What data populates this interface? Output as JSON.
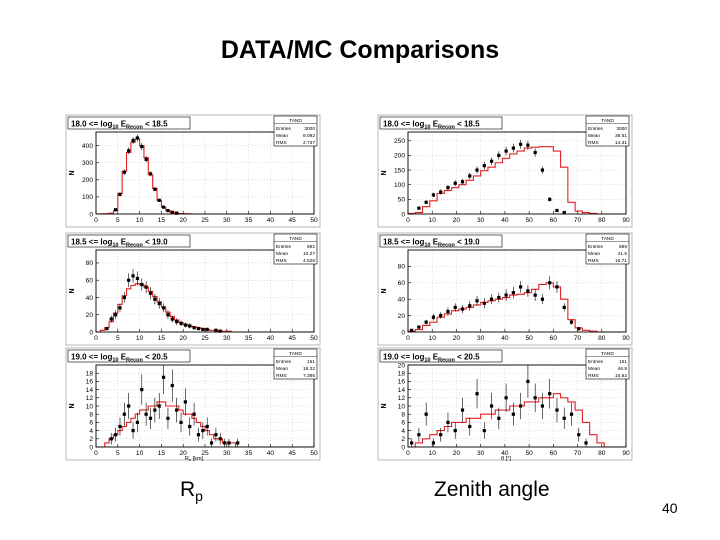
{
  "slide": {
    "title": "DATA/MC Comparisons",
    "caption_left": "Rp",
    "caption_left_main": "R",
    "caption_left_sub": "p",
    "caption_right": "Zenith angle",
    "page_number": "40"
  },
  "colors": {
    "mc_line": "#e02020",
    "data_marker": "#000000",
    "frame": "#000000",
    "grid": "#b0b0b0"
  },
  "chart_data": [
    {
      "type": "histogram",
      "title": "18.0 <= log10 ERecon < 18.5",
      "title_parts": [
        "18.0 <= log",
        "10",
        " E",
        "Recon",
        " < 18.5"
      ],
      "xlabel": "",
      "ylabel": "N",
      "xlim": [
        0,
        50
      ],
      "ylim": [
        0,
        480
      ],
      "xticks": [
        0,
        5,
        10,
        15,
        20,
        25,
        30,
        35,
        40,
        45,
        50
      ],
      "yticks": [
        0,
        100,
        200,
        300,
        400
      ],
      "stats": {
        "name": "TAND",
        "rows": [
          [
            "Entries",
            "3000"
          ],
          [
            "Mean",
            "8.092"
          ],
          [
            "RMS",
            "2.737"
          ]
        ]
      },
      "bin_width": 1,
      "mc": [
        0,
        1,
        2,
        5,
        20,
        120,
        250,
        360,
        420,
        440,
        400,
        330,
        230,
        150,
        80,
        40,
        20,
        10,
        5,
        3,
        2,
        1,
        0,
        0,
        0,
        0,
        0,
        0,
        0,
        0,
        0,
        0,
        0,
        0,
        0,
        0,
        0,
        0,
        0,
        0,
        0,
        0,
        0,
        0,
        0,
        0,
        0,
        0,
        0,
        0
      ],
      "data": [
        [
          4.5,
          25,
          0
        ],
        [
          5.5,
          115,
          12
        ],
        [
          6.5,
          245,
          16
        ],
        [
          7.5,
          370,
          20
        ],
        [
          8.5,
          430,
          21
        ],
        [
          9.5,
          445,
          21
        ],
        [
          10.5,
          395,
          20
        ],
        [
          11.5,
          320,
          18
        ],
        [
          12.5,
          235,
          15
        ],
        [
          13.5,
          145,
          12
        ],
        [
          14.5,
          80,
          9
        ],
        [
          15.5,
          40,
          6
        ],
        [
          16.5,
          20,
          4
        ],
        [
          17.5,
          10,
          3
        ],
        [
          18.5,
          5,
          2
        ]
      ],
      "grid": true
    },
    {
      "type": "histogram",
      "title": "18.0 <= log10 ERecon < 18.5",
      "title_parts": [
        "18.0 <= log",
        "10",
        " E",
        "Recon",
        " < 18.5"
      ],
      "xlabel": "",
      "ylabel": "N",
      "xlim": [
        0,
        90
      ],
      "ylim": [
        0,
        280
      ],
      "xticks": [
        0,
        10,
        20,
        30,
        40,
        50,
        60,
        70,
        80,
        90
      ],
      "yticks": [
        0,
        50,
        100,
        150,
        200,
        250
      ],
      "stats": {
        "name": "TAND",
        "rows": [
          [
            "Entries",
            "3000"
          ],
          [
            "Mean",
            "39.51"
          ],
          [
            "RMS",
            "14.31"
          ]
        ]
      },
      "bin_width": 3,
      "mc": [
        2,
        5,
        25,
        45,
        70,
        80,
        90,
        100,
        115,
        130,
        148,
        160,
        175,
        190,
        205,
        215,
        225,
        228,
        230,
        230,
        215,
        160,
        40,
        10,
        5,
        2,
        0,
        0,
        0,
        0
      ],
      "data": [
        [
          4.5,
          20,
          4
        ],
        [
          7.5,
          40,
          6
        ],
        [
          10.5,
          65,
          8
        ],
        [
          13.5,
          75,
          9
        ],
        [
          16.5,
          90,
          9
        ],
        [
          19.5,
          105,
          10
        ],
        [
          22.5,
          110,
          10
        ],
        [
          25.5,
          130,
          11
        ],
        [
          28.5,
          150,
          12
        ],
        [
          31.5,
          165,
          13
        ],
        [
          34.5,
          180,
          13
        ],
        [
          37.5,
          200,
          14
        ],
        [
          40.5,
          215,
          15
        ],
        [
          43.5,
          225,
          15
        ],
        [
          46.5,
          238,
          15
        ],
        [
          49.5,
          235,
          15
        ],
        [
          52.5,
          210,
          14
        ],
        [
          55.5,
          150,
          12
        ],
        [
          58.5,
          50,
          7
        ],
        [
          61.5,
          12,
          4
        ],
        [
          64.5,
          5,
          2
        ]
      ],
      "grid": true
    },
    {
      "type": "histogram",
      "title": "18.5 <= log10 ERecon < 19.0",
      "title_parts": [
        "18.5 <= log",
        "10",
        " E",
        "Recon",
        " < 19.0"
      ],
      "xlabel": "",
      "ylabel": "N",
      "xlim": [
        0,
        50
      ],
      "ylim": [
        0,
        95
      ],
      "xticks": [
        0,
        5,
        10,
        15,
        20,
        25,
        30,
        35,
        40,
        45,
        50
      ],
      "yticks": [
        0,
        20,
        40,
        60,
        80
      ],
      "stats": {
        "name": "TAND",
        "rows": [
          [
            "Entries",
            "892"
          ],
          [
            "Mean",
            "10.27"
          ],
          [
            "RMS",
            "4.528"
          ]
        ]
      },
      "bin_width": 1,
      "mc": [
        0,
        2,
        5,
        12,
        22,
        32,
        42,
        50,
        54,
        56,
        55,
        52,
        47,
        41,
        35,
        29,
        23,
        18,
        14,
        11,
        9,
        7,
        6,
        5,
        4,
        3,
        2,
        2,
        1,
        1,
        1,
        0,
        0,
        0,
        0,
        0,
        0,
        0,
        0,
        0,
        0,
        0,
        0,
        0,
        0,
        0,
        0,
        0,
        0,
        0
      ],
      "data": [
        [
          2.5,
          4,
          2
        ],
        [
          3.5,
          15,
          4
        ],
        [
          4.5,
          20,
          5
        ],
        [
          5.5,
          28,
          5
        ],
        [
          6.5,
          40,
          6
        ],
        [
          7.5,
          60,
          8
        ],
        [
          8.5,
          65,
          8
        ],
        [
          9.5,
          62,
          8
        ],
        [
          10.5,
          55,
          7
        ],
        [
          11.5,
          52,
          7
        ],
        [
          12.5,
          45,
          7
        ],
        [
          13.5,
          38,
          6
        ],
        [
          14.5,
          33,
          6
        ],
        [
          15.5,
          28,
          5
        ],
        [
          16.5,
          20,
          5
        ],
        [
          17.5,
          15,
          4
        ],
        [
          18.5,
          12,
          4
        ],
        [
          19.5,
          10,
          3
        ],
        [
          20.5,
          8,
          3
        ],
        [
          21.5,
          7,
          3
        ],
        [
          22.5,
          5,
          2
        ],
        [
          23.5,
          4,
          2
        ],
        [
          24.5,
          3,
          2
        ],
        [
          25.5,
          3,
          2
        ],
        [
          27.5,
          2,
          1
        ],
        [
          28.5,
          1,
          1
        ]
      ],
      "grid": true
    },
    {
      "type": "histogram",
      "title": "18.5 <= log10 ERecon < 19.0",
      "title_parts": [
        "18.5 <= log",
        "10",
        " E",
        "Recon",
        " < 19.0"
      ],
      "xlabel": "",
      "ylabel": "N",
      "xlim": [
        0,
        90
      ],
      "ylim": [
        0,
        100
      ],
      "xticks": [
        0,
        10,
        20,
        30,
        40,
        50,
        60,
        70,
        80,
        90
      ],
      "yticks": [
        0,
        20,
        40,
        60,
        80
      ],
      "stats": {
        "name": "TAND",
        "rows": [
          [
            "Entries",
            "889"
          ],
          [
            "Mean",
            "41.5"
          ],
          [
            "RMS",
            "16.71"
          ]
        ]
      },
      "bin_width": 3,
      "mc": [
        1,
        3,
        8,
        12,
        18,
        22,
        26,
        28,
        30,
        33,
        36,
        38,
        40,
        42,
        45,
        46,
        48,
        52,
        58,
        60,
        55,
        40,
        15,
        5,
        2,
        1,
        0,
        0,
        0,
        0
      ],
      "data": [
        [
          1.5,
          2,
          1
        ],
        [
          4.5,
          6,
          2
        ],
        [
          7.5,
          12,
          3
        ],
        [
          10.5,
          18,
          4
        ],
        [
          13.5,
          20,
          4
        ],
        [
          16.5,
          25,
          5
        ],
        [
          19.5,
          30,
          5
        ],
        [
          22.5,
          28,
          5
        ],
        [
          25.5,
          32,
          6
        ],
        [
          28.5,
          38,
          6
        ],
        [
          31.5,
          35,
          6
        ],
        [
          34.5,
          40,
          6
        ],
        [
          37.5,
          42,
          6
        ],
        [
          40.5,
          45,
          7
        ],
        [
          43.5,
          48,
          7
        ],
        [
          46.5,
          55,
          7
        ],
        [
          49.5,
          50,
          7
        ],
        [
          52.5,
          45,
          7
        ],
        [
          55.5,
          40,
          6
        ],
        [
          58.5,
          60,
          8
        ],
        [
          61.5,
          55,
          7
        ],
        [
          64.5,
          30,
          5
        ],
        [
          67.5,
          12,
          3
        ],
        [
          70.5,
          4,
          2
        ]
      ],
      "grid": true
    },
    {
      "type": "histogram",
      "title": "19.0 <= log10 ERecon < 20.5",
      "title_parts": [
        "19.0 <= log",
        "10",
        " E",
        "Recon",
        " < 20.5"
      ],
      "xlabel": "R",
      "xlabel_sub": "p",
      "xlabel_unit": " [km]",
      "ylabel": "N",
      "xlim": [
        0,
        50
      ],
      "ylim": [
        0,
        20
      ],
      "xticks": [
        0,
        5,
        10,
        15,
        20,
        25,
        30,
        35,
        40,
        45,
        50
      ],
      "yticks": [
        0,
        2,
        4,
        6,
        8,
        10,
        12,
        14,
        16,
        18
      ],
      "stats": {
        "name": "TAND",
        "rows": [
          [
            "Entries",
            "151"
          ],
          [
            "Mean",
            "18.32"
          ],
          [
            "RMS",
            "7.386"
          ]
        ]
      },
      "bin_width": 1,
      "mc": [
        0,
        0,
        1,
        2,
        3,
        4,
        5,
        6,
        7,
        8,
        9,
        9,
        10,
        10,
        11,
        11,
        10,
        10,
        10,
        9,
        8,
        8,
        7,
        6,
        5,
        4,
        3,
        2,
        2,
        1,
        1,
        1,
        0,
        0,
        0,
        0,
        0,
        0,
        0,
        0,
        0,
        0,
        0,
        0,
        0,
        0,
        0,
        0,
        0,
        0
      ],
      "data": [
        [
          3.5,
          2,
          1.4
        ],
        [
          4.5,
          3,
          1.7
        ],
        [
          5.5,
          5,
          2.2
        ],
        [
          6.5,
          8,
          2.8
        ],
        [
          7.5,
          10,
          3.2
        ],
        [
          8.5,
          4,
          2.0
        ],
        [
          9.5,
          6,
          2.4
        ],
        [
          10.5,
          14,
          3.7
        ],
        [
          11.5,
          8,
          2.8
        ],
        [
          12.5,
          7,
          2.6
        ],
        [
          13.5,
          9,
          3.0
        ],
        [
          14.5,
          10,
          3.2
        ],
        [
          15.5,
          17,
          4.1
        ],
        [
          16.5,
          7,
          2.6
        ],
        [
          17.5,
          15,
          3.9
        ],
        [
          18.5,
          9,
          3.0
        ],
        [
          19.5,
          6,
          2.4
        ],
        [
          20.5,
          11,
          3.3
        ],
        [
          21.5,
          5,
          2.2
        ],
        [
          22.5,
          8,
          2.8
        ],
        [
          23.5,
          3,
          1.7
        ],
        [
          24.5,
          4,
          2.0
        ],
        [
          25.5,
          5,
          2.2
        ],
        [
          26.5,
          1,
          1.0
        ],
        [
          27.5,
          3,
          1.7
        ],
        [
          28.5,
          2,
          1.4
        ],
        [
          29.5,
          1,
          1.0
        ],
        [
          30.5,
          1,
          1.0
        ],
        [
          32.5,
          1,
          1.0
        ]
      ],
      "grid": true
    },
    {
      "type": "histogram",
      "title": "19.0 <= log10 ERecon < 20.5",
      "title_parts": [
        "19.0 <= log",
        "10",
        " E",
        "Recon",
        " < 20.5"
      ],
      "xlabel": "θ [°]",
      "ylabel": "N",
      "xlim": [
        0,
        90
      ],
      "ylim": [
        0,
        20
      ],
      "xticks": [
        0,
        10,
        20,
        30,
        40,
        50,
        60,
        70,
        80,
        90
      ],
      "yticks": [
        0,
        2,
        4,
        6,
        8,
        10,
        12,
        14,
        16,
        18,
        20
      ],
      "stats": {
        "name": "TAND",
        "rows": [
          [
            "Entries",
            "151"
          ],
          [
            "Mean",
            "46.9"
          ],
          [
            "RMS",
            "16.82"
          ]
        ]
      },
      "bin_width": 3,
      "mc": [
        0,
        1,
        2,
        3,
        4,
        5,
        6,
        6,
        7,
        7,
        8,
        8,
        9,
        9,
        10,
        10,
        11,
        11,
        12,
        12,
        13,
        12,
        11,
        9,
        6,
        3,
        1,
        0,
        0,
        0
      ],
      "data": [
        [
          1.5,
          1,
          1.0
        ],
        [
          4.5,
          3,
          1.7
        ],
        [
          7.5,
          8,
          2.8
        ],
        [
          10.5,
          1,
          1.0
        ],
        [
          13.5,
          3,
          1.7
        ],
        [
          16.5,
          6,
          2.4
        ],
        [
          19.5,
          4,
          2.0
        ],
        [
          22.5,
          9,
          3.0
        ],
        [
          25.5,
          5,
          2.2
        ],
        [
          28.5,
          13,
          3.6
        ],
        [
          31.5,
          4,
          2.0
        ],
        [
          34.5,
          10,
          3.2
        ],
        [
          37.5,
          7,
          2.6
        ],
        [
          40.5,
          12,
          3.5
        ],
        [
          43.5,
          8,
          2.8
        ],
        [
          46.5,
          10,
          3.2
        ],
        [
          49.5,
          16,
          4.0
        ],
        [
          52.5,
          12,
          3.5
        ],
        [
          55.5,
          10,
          3.2
        ],
        [
          58.5,
          13,
          3.6
        ],
        [
          61.5,
          9,
          3.0
        ],
        [
          64.5,
          7,
          2.6
        ],
        [
          67.5,
          8,
          2.8
        ],
        [
          70.5,
          3,
          1.7
        ],
        [
          73.5,
          1,
          1.0
        ]
      ],
      "grid": true
    }
  ]
}
